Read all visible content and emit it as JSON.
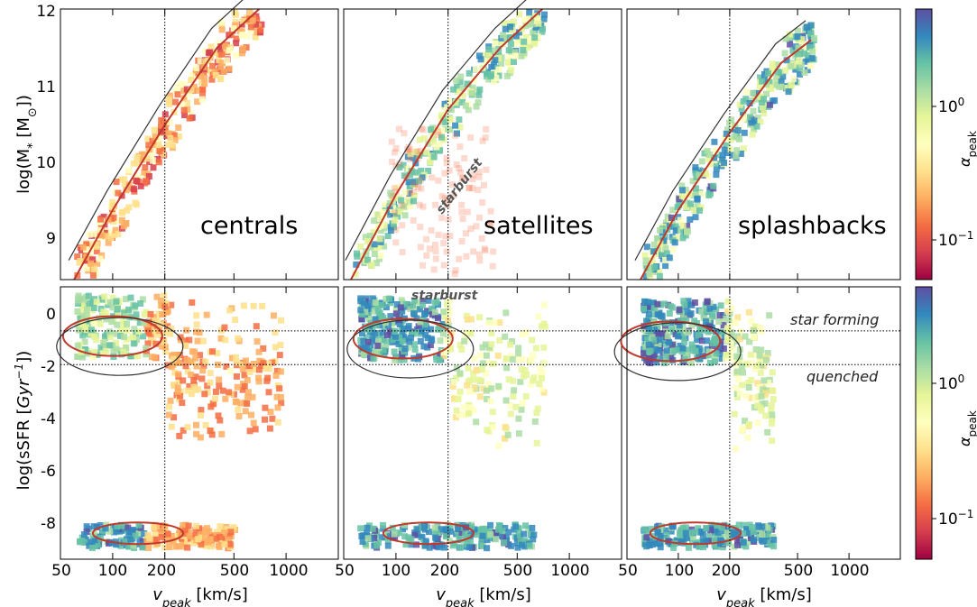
{
  "chart_data": [
    {
      "type": "heatmap",
      "panel": "centrals",
      "xlabel": "v_peak [km/s]",
      "ylabel": "log(M_* [M_⊙])",
      "x_scale": "log",
      "xlim": [
        50,
        2000
      ],
      "ylim": [
        8.5,
        12
      ],
      "x_ticks": [
        50,
        100,
        200,
        500,
        1000
      ],
      "y_ticks": [
        9,
        10,
        11,
        12
      ],
      "vline": 200,
      "relation": {
        "vpeak": [
          60,
          100,
          200,
          400,
          700
        ],
        "logM": [
          8.5,
          9.4,
          10.5,
          11.5,
          12.0
        ]
      },
      "color_by": "alpha_peak",
      "typical_alpha": 0.2
    },
    {
      "type": "heatmap",
      "panel": "satellites",
      "xlabel": "v_peak [km/s]",
      "x_scale": "log",
      "xlim": [
        50,
        2000
      ],
      "ylim": [
        8.5,
        12
      ],
      "vline": 200,
      "annotations": [
        "starburst"
      ],
      "relation": {
        "vpeak": [
          55,
          100,
          200,
          400,
          700
        ],
        "logM": [
          8.5,
          9.6,
          10.7,
          11.5,
          12.0
        ]
      },
      "color_by": "alpha_peak",
      "typical_alpha": 1.2
    },
    {
      "type": "heatmap",
      "panel": "splashbacks",
      "xlabel": "v_peak [km/s]",
      "x_scale": "log",
      "xlim": [
        50,
        2000
      ],
      "ylim": [
        8.5,
        12
      ],
      "vline": 200,
      "relation": {
        "vpeak": [
          60,
          100,
          200,
          400,
          600
        ],
        "logM": [
          8.5,
          9.4,
          10.4,
          11.3,
          11.6
        ]
      },
      "color_by": "alpha_peak",
      "typical_alpha": 1.5
    },
    {
      "type": "heatmap",
      "panel": "centrals-ssfr",
      "xlabel": "v_peak [km/s]",
      "ylabel": "log(sSFR [Gyr^-1])",
      "x_scale": "log",
      "xlim": [
        50,
        2000
      ],
      "ylim": [
        -9.5,
        1
      ],
      "x_ticks": [
        50,
        100,
        200,
        500,
        1000
      ],
      "y_ticks": [
        0,
        -2,
        -4,
        -6,
        -8
      ],
      "vline": 200,
      "hlines": [
        -0.7,
        -2.0
      ],
      "star_forming_peak": {
        "vpeak": 100,
        "logsSFR": -0.9
      },
      "quenched_floor": -8.5,
      "color_by": "alpha_peak"
    },
    {
      "type": "heatmap",
      "panel": "satellites-ssfr",
      "xlabel": "v_peak [km/s]",
      "x_scale": "log",
      "xlim": [
        50,
        2000
      ],
      "ylim": [
        -9.5,
        1
      ],
      "vline": 200,
      "hlines": [
        -0.7,
        -2.0
      ],
      "annotations": [
        "starburst"
      ],
      "star_forming_peak": {
        "vpeak": 110,
        "logsSFR": -1.0
      },
      "quenched_floor": -8.5,
      "color_by": "alpha_peak"
    },
    {
      "type": "heatmap",
      "panel": "splashbacks-ssfr",
      "xlabel": "v_peak [km/s]",
      "x_scale": "log",
      "xlim": [
        50,
        2000
      ],
      "ylim": [
        -9.5,
        1
      ],
      "vline": 200,
      "hlines": [
        -0.7,
        -2.0
      ],
      "annotations": [
        "star forming",
        "quenched"
      ],
      "star_forming_peak": {
        "vpeak": 90,
        "logsSFR": -1.1
      },
      "quenched_floor": -8.5,
      "color_by": "alpha_peak"
    }
  ],
  "panels": {
    "top": [
      {
        "name": "centrals"
      },
      {
        "name": "satellites"
      },
      {
        "name": "splashbacks"
      }
    ]
  },
  "labels": {
    "xlabel_main": "v",
    "xlabel_sub": "peak",
    "xlabel_unit": " [km/s]",
    "ylabel_top": "log(M",
    "ylabel_top_sub": "*",
    "ylabel_top_rest": " [M",
    "ylabel_top_sun": "⊙",
    "ylabel_top_end": "])",
    "ylabel_bottom": "log(sSFR [",
    "ylabel_bottom_gyr": "Gyr",
    "ylabel_bottom_exp": "−1",
    "ylabel_bottom_end": "])",
    "annotation_starburst": "starburst",
    "annotation_star_forming": "star forming",
    "annotation_quenched": "quenched"
  },
  "xticks": [
    "50",
    "100",
    "200",
    "500",
    "1000"
  ],
  "yticks_top": [
    "9",
    "10",
    "11",
    "12"
  ],
  "yticks_bottom": [
    "0",
    "-2",
    "-4",
    "-6",
    "-8"
  ],
  "colorbar": {
    "label": "α",
    "label_sub": "peak",
    "scale": "log",
    "range": [
      0.05,
      5
    ],
    "ticks": [
      {
        "base": "10",
        "exp": "0"
      },
      {
        "base": "10",
        "exp": "−1"
      }
    ],
    "colormap": "Spectral",
    "colors": [
      "#9e0142",
      "#d53e4f",
      "#f46d43",
      "#fdae61",
      "#fee08b",
      "#ffffbf",
      "#e6f598",
      "#abdda4",
      "#66c2a5",
      "#3288bd",
      "#5e4fa2"
    ]
  }
}
